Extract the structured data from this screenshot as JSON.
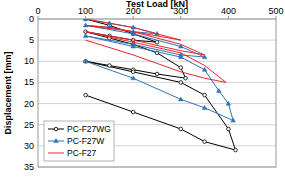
{
  "chart_data": {
    "type": "line",
    "x_label": "Test Load [kN]",
    "y_label": "Displacement [mm]",
    "xlim": [
      0,
      500
    ],
    "xticks": [
      0,
      100,
      200,
      300,
      400,
      500
    ],
    "ylim": [
      0,
      35
    ],
    "yticks": [
      0,
      5,
      10,
      15,
      20,
      25,
      30,
      35
    ],
    "grid": true,
    "legend": "lower left",
    "series": [
      {
        "name": "PC-F27WG",
        "color": "#000000",
        "marker": "circle",
        "x": [
          100,
          150,
          200,
          250,
          200,
          150,
          100,
          150,
          200,
          250,
          300,
          310,
          250,
          200,
          150,
          100,
          200,
          300,
          350,
          400,
          415,
          350,
          300,
          200,
          100
        ],
        "values": [
          0,
          1.5,
          3.5,
          5.5,
          5,
          4,
          3,
          4.5,
          6,
          8,
          11.5,
          14,
          13,
          12,
          11,
          10,
          12.5,
          15,
          18,
          26,
          31,
          29,
          26,
          22,
          18
        ]
      },
      {
        "name": "PC-F27W",
        "color": "#2e75b6",
        "marker": "triangle",
        "x": [
          100,
          150,
          200,
          250,
          200,
          150,
          100,
          200,
          300,
          350,
          300,
          200,
          100,
          200,
          300,
          350,
          380,
          400,
          410,
          350,
          300,
          200,
          100
        ],
        "values": [
          0,
          1,
          2,
          3.5,
          3,
          2,
          1.5,
          3.5,
          6.5,
          9,
          8.5,
          6,
          4,
          6.5,
          9,
          12,
          17,
          20,
          24,
          21,
          19,
          14,
          10
        ]
      },
      {
        "name": "PC-F27",
        "color": "#e8262a",
        "marker": "none",
        "x": [
          100,
          200,
          300,
          250,
          150,
          100,
          200,
          300,
          350,
          300,
          200,
          100,
          200,
          300,
          350,
          395,
          350,
          300,
          200,
          100
        ],
        "values": [
          0,
          2,
          5,
          4,
          2,
          1.5,
          3,
          6,
          8.5,
          7.5,
          5,
          3,
          5.5,
          8,
          11,
          15,
          14,
          12.5,
          8.5,
          5
        ]
      }
    ]
  }
}
